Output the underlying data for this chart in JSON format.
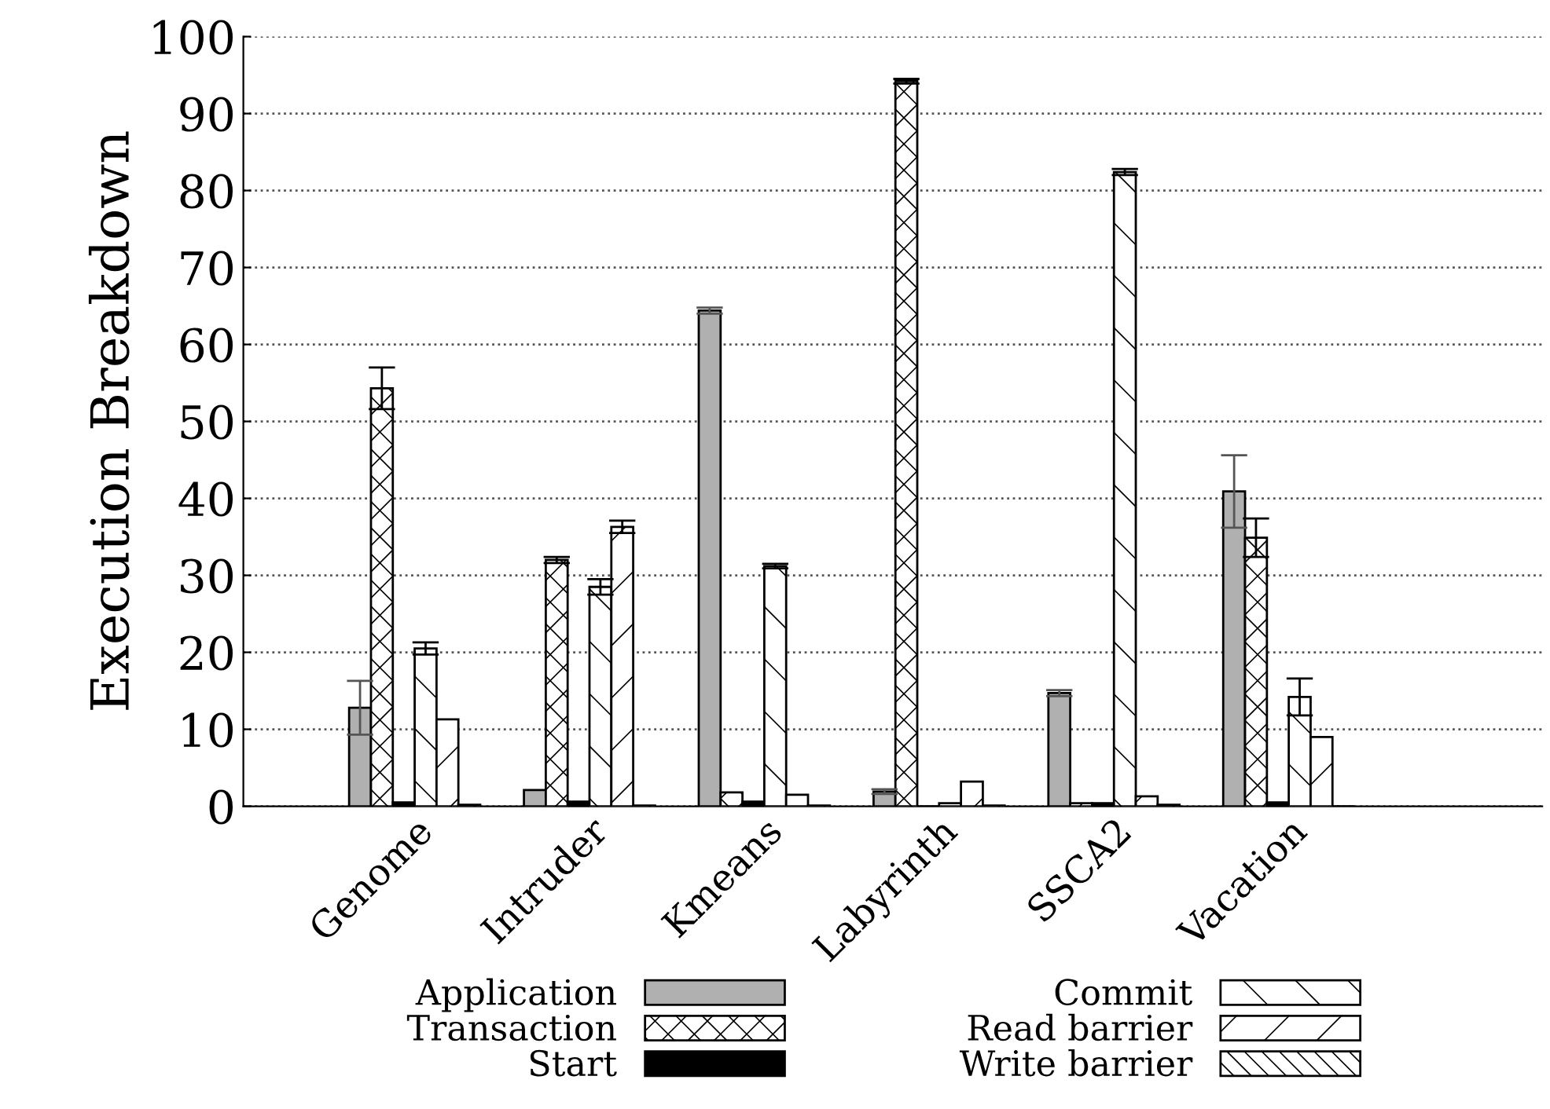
{
  "chart_data": {
    "type": "bar",
    "ylabel": "Execution Breakdown",
    "categories": [
      "Genome",
      "Intruder",
      "Kmeans",
      "Labyrinth",
      "SSCA2",
      "Vacation"
    ],
    "ylim": [
      0,
      100
    ],
    "yticks": [
      0,
      10,
      20,
      30,
      40,
      50,
      60,
      70,
      80,
      90,
      100
    ],
    "grid": "y",
    "legend": "bottom",
    "series": [
      {
        "name": "Application",
        "color": "#b0b0b0",
        "values": [
          12.8,
          2.1,
          64.4,
          1.9,
          14.7,
          40.9
        ],
        "errors": [
          3.5,
          null,
          0.4,
          0.3,
          0.4,
          4.7
        ]
      },
      {
        "name": "Transaction",
        "color": "#000000",
        "values": [
          54.3,
          32.0,
          1.8,
          94.2,
          0.4,
          34.9
        ],
        "errors": [
          2.7,
          0.4,
          null,
          0.3,
          null,
          2.5
        ]
      },
      {
        "name": "Start",
        "color": "#000000",
        "values": [
          0.5,
          0.6,
          0.6,
          0.0,
          0.4,
          0.5
        ]
      },
      {
        "name": "Commit",
        "color": "#000000",
        "values": [
          20.5,
          28.5,
          31.2,
          0.4,
          82.4,
          14.2
        ],
        "errors": [
          0.8,
          1.0,
          0.3,
          null,
          0.4,
          2.4
        ]
      },
      {
        "name": "Read barrier",
        "color": "#000000",
        "values": [
          11.3,
          36.3,
          1.5,
          3.2,
          1.3,
          9.0
        ],
        "errors": [
          null,
          0.8,
          null,
          null,
          null,
          null
        ]
      },
      {
        "name": "Write barrier",
        "color": "#000000",
        "values": [
          0.2,
          0.1,
          0.1,
          0.1,
          0.2,
          0.0
        ]
      }
    ]
  }
}
